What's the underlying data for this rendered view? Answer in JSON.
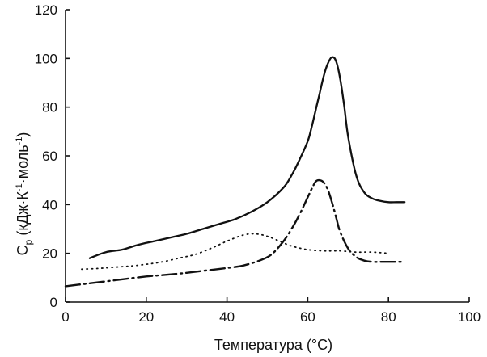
{
  "chart_data": {
    "type": "line",
    "xlabel": "Температура (°C)",
    "ylabel": {
      "main": "C",
      "sub": "p",
      "unit_a": " (кДж·К",
      "sup_a": "-1",
      "unit_b": "·моль",
      "sup_b": "-1",
      "unit_c": ")"
    },
    "xlim": [
      0,
      100
    ],
    "ylim": [
      0,
      120
    ],
    "x_ticks": [
      "0",
      "20",
      "40",
      "60",
      "80",
      "100"
    ],
    "y_ticks": [
      "0",
      "20",
      "40",
      "60",
      "80",
      "100",
      "120"
    ],
    "grid": false,
    "legend": "none",
    "series": [
      {
        "style": "solid",
        "x": [
          6,
          10,
          14,
          18,
          22,
          26,
          30,
          34,
          38,
          42,
          46,
          50,
          54,
          56,
          58,
          60,
          61,
          62,
          63,
          64,
          65,
          66,
          67,
          68,
          69,
          70,
          72,
          74,
          76,
          78,
          80,
          82,
          84
        ],
        "y": [
          18,
          20.5,
          21.5,
          23.5,
          25,
          26.5,
          28,
          30,
          32,
          34,
          37,
          41,
          47,
          52,
          58.5,
          66,
          72,
          79,
          86,
          93,
          98,
          100.5,
          99,
          92,
          81,
          68,
          52,
          45,
          42.5,
          41.5,
          41,
          41,
          41
        ]
      },
      {
        "style": "dotted",
        "x": [
          4,
          8,
          12,
          16,
          20,
          24,
          28,
          32,
          36,
          40,
          44,
          47,
          50,
          53,
          56,
          60,
          64,
          68,
          72,
          76,
          80
        ],
        "y": [
          13.5,
          13.8,
          14.3,
          14.8,
          15.5,
          16.5,
          18,
          19.5,
          22,
          25,
          27.5,
          28,
          27,
          25,
          23,
          21.5,
          21,
          21,
          20.5,
          20.5,
          20
        ]
      },
      {
        "style": "dash-dot",
        "x": [
          0,
          5,
          10,
          15,
          20,
          25,
          30,
          35,
          40,
          44,
          48,
          51,
          54,
          56,
          58,
          60,
          61,
          62,
          63,
          64,
          65,
          66,
          67,
          68,
          70,
          72,
          74,
          76,
          78,
          80,
          82,
          84
        ],
        "y": [
          6.5,
          7.5,
          8.5,
          9.5,
          10.5,
          11.2,
          12,
          13,
          14,
          15,
          17,
          19.5,
          25,
          30,
          36,
          43,
          46.5,
          49.5,
          50,
          49,
          46,
          41,
          35,
          29,
          22,
          18.5,
          17,
          16.5,
          16.5,
          16.5,
          16.5,
          16.5
        ]
      }
    ]
  }
}
